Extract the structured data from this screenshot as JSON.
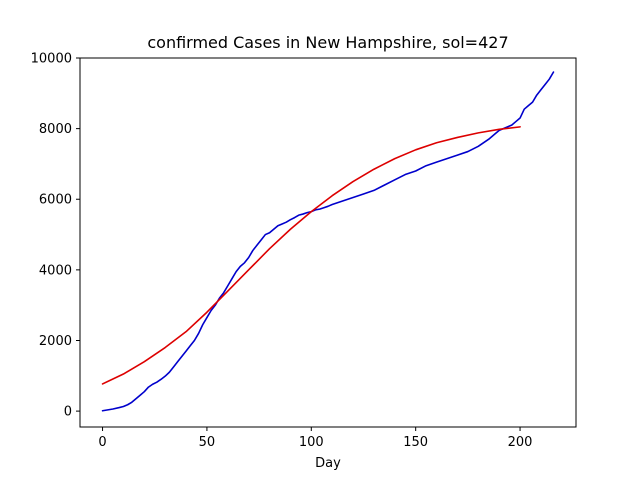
{
  "chart_data": {
    "type": "line",
    "title": "confirmed Cases in New Hampshire, sol=427",
    "xlabel": "Day",
    "ylabel": "",
    "xlim": [
      -10.8,
      226.8
    ],
    "ylim": [
      -450,
      10000
    ],
    "xticks": [
      0,
      50,
      100,
      150,
      200
    ],
    "yticks": [
      0,
      2000,
      4000,
      6000,
      8000,
      10000
    ],
    "grid": false,
    "series": [
      {
        "color": "#0000cc",
        "x": [
          0,
          5,
          8,
          10,
          12,
          14,
          16,
          18,
          20,
          22,
          24,
          26,
          28,
          30,
          32,
          34,
          36,
          38,
          40,
          42,
          44,
          46,
          48,
          50,
          52,
          54,
          56,
          58,
          60,
          62,
          64,
          66,
          68,
          70,
          72,
          74,
          76,
          78,
          80,
          82,
          84,
          86,
          88,
          90,
          92,
          94,
          96,
          98,
          100,
          102,
          104,
          106,
          108,
          110,
          115,
          120,
          125,
          130,
          135,
          140,
          145,
          150,
          155,
          160,
          165,
          170,
          175,
          180,
          185,
          188,
          190,
          192,
          194,
          196,
          198,
          200,
          202,
          204,
          206,
          208,
          210,
          212,
          214,
          216
        ],
        "y": [
          10,
          60,
          100,
          130,
          180,
          250,
          350,
          450,
          550,
          680,
          760,
          820,
          900,
          990,
          1100,
          1250,
          1400,
          1550,
          1700,
          1850,
          2000,
          2200,
          2450,
          2650,
          2850,
          3000,
          3200,
          3350,
          3550,
          3750,
          3950,
          4100,
          4200,
          4350,
          4550,
          4700,
          4850,
          5000,
          5050,
          5150,
          5250,
          5300,
          5350,
          5420,
          5480,
          5550,
          5580,
          5620,
          5650,
          5700,
          5720,
          5760,
          5800,
          5850,
          5950,
          6050,
          6150,
          6250,
          6400,
          6550,
          6700,
          6800,
          6950,
          7050,
          7150,
          7250,
          7350,
          7500,
          7700,
          7850,
          7950,
          8000,
          8050,
          8100,
          8200,
          8300,
          8550,
          8650,
          8750,
          8950,
          9100,
          9250,
          9400,
          9600
        ]
      },
      {
        "color": "#dd0000",
        "x": [
          0,
          10,
          20,
          30,
          40,
          50,
          60,
          70,
          80,
          90,
          100,
          110,
          120,
          130,
          140,
          150,
          160,
          170,
          180,
          190,
          200
        ],
        "y": [
          770,
          1050,
          1400,
          1800,
          2250,
          2800,
          3400,
          4000,
          4600,
          5150,
          5650,
          6100,
          6500,
          6850,
          7150,
          7400,
          7600,
          7750,
          7880,
          7980,
          8050
        ]
      }
    ]
  }
}
